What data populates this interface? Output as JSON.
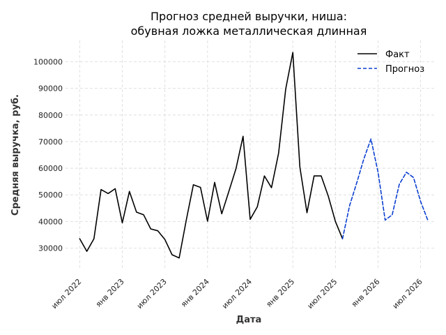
{
  "chart_data": {
    "type": "line",
    "title_lines": [
      "Прогноз средней выручки, ниша:",
      "обувная ложка металлическая длинная"
    ],
    "xlabel": "Дата",
    "ylabel": "Средняя выручка, руб.",
    "x_tick_labels": [
      {
        "date": "2022-07",
        "label": "июл 2022"
      },
      {
        "date": "2023-01",
        "label": "янв 2023"
      },
      {
        "date": "2023-07",
        "label": "июл 2023"
      },
      {
        "date": "2024-01",
        "label": "янв 2024"
      },
      {
        "date": "2024-07",
        "label": "июл 2024"
      },
      {
        "date": "2025-01",
        "label": "янв 2025"
      },
      {
        "date": "2025-07",
        "label": "июл 2025"
      },
      {
        "date": "2026-01",
        "label": "янв 2026"
      },
      {
        "date": "2026-07",
        "label": "июл 2026"
      }
    ],
    "y_ticks": [
      30000,
      40000,
      50000,
      60000,
      70000,
      80000,
      90000,
      100000
    ],
    "y_tick_labels": [
      "30000",
      "40000",
      "50000",
      "60000",
      "70000",
      "80000",
      "90000",
      "100000"
    ],
    "ylim": [
      22000,
      108000
    ],
    "xlim": [
      "2022-05",
      "2026-09"
    ],
    "grid": true,
    "legend_position": "top-right",
    "series": [
      {
        "name": "Факт",
        "color": "#000000",
        "style": "solid",
        "x": [
          "2022-07",
          "2022-08",
          "2022-09",
          "2022-10",
          "2022-11",
          "2022-12",
          "2023-01",
          "2023-02",
          "2023-03",
          "2023-04",
          "2023-05",
          "2023-06",
          "2023-07",
          "2023-08",
          "2023-09",
          "2023-10",
          "2023-11",
          "2023-12",
          "2024-01",
          "2024-02",
          "2024-03",
          "2024-04",
          "2024-05",
          "2024-06",
          "2024-07",
          "2024-08",
          "2024-09",
          "2024-10",
          "2024-11",
          "2024-12",
          "2025-01",
          "2025-02",
          "2025-03",
          "2025-04",
          "2025-05",
          "2025-06",
          "2025-07",
          "2025-08"
        ],
        "values": [
          33500,
          28800,
          33500,
          52000,
          50500,
          52300,
          39500,
          51300,
          43500,
          42500,
          37200,
          36500,
          33200,
          27500,
          26300,
          40500,
          53800,
          52800,
          40100,
          54700,
          42900,
          51300,
          59800,
          72000,
          40800,
          45500,
          57100,
          52700,
          65700,
          89800,
          103500,
          60500,
          43300,
          57100,
          57100,
          49500,
          40000,
          33500
        ]
      },
      {
        "name": "Прогноз",
        "color": "#0a3fd0",
        "style": "dashed",
        "x": [
          "2025-08",
          "2025-09",
          "2025-10",
          "2025-11",
          "2025-12",
          "2026-01",
          "2026-02",
          "2026-03",
          "2026-04",
          "2026-05",
          "2026-06",
          "2026-07",
          "2026-08"
        ],
        "values": [
          33500,
          46000,
          54500,
          63500,
          71000,
          58500,
          40500,
          42500,
          54000,
          58500,
          56500,
          47500,
          40500
        ]
      }
    ]
  }
}
